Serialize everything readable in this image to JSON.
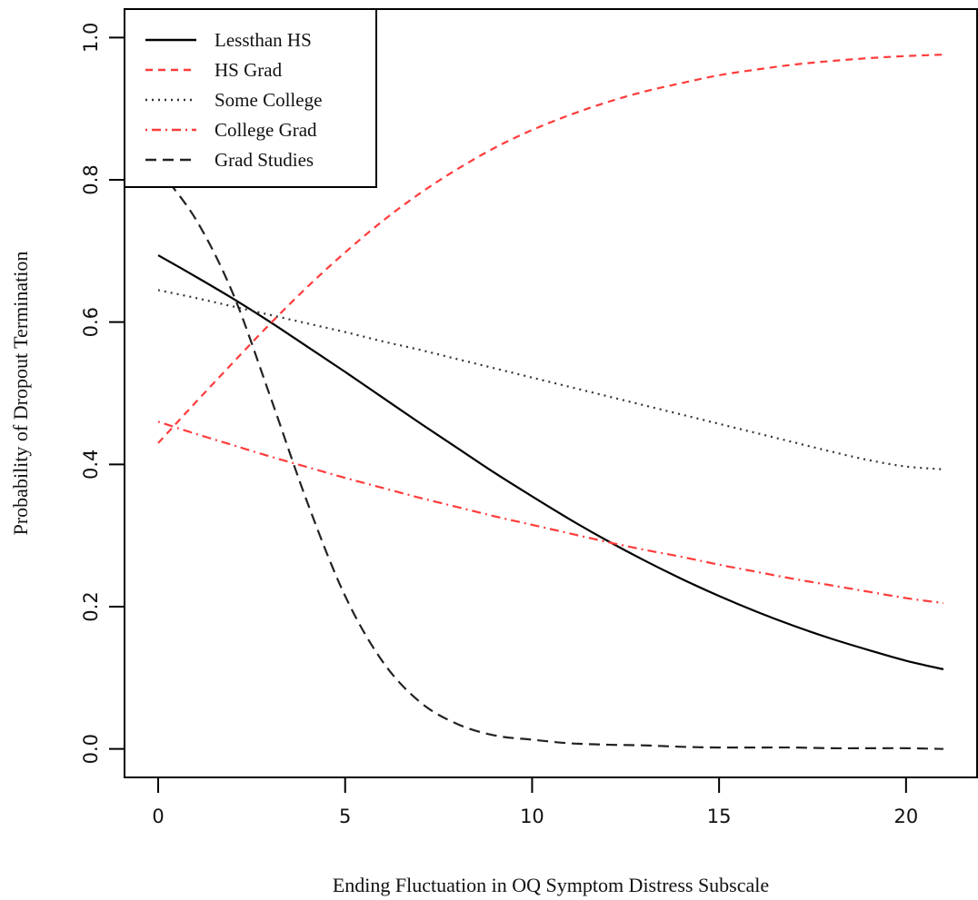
{
  "chart_data": {
    "type": "line",
    "title": "",
    "xlabel": "Ending Fluctuation in OQ Symptom Distress Subscale",
    "ylabel": "Probability of Dropout Termination",
    "xlim": [
      -0.9,
      21.9
    ],
    "ylim": [
      -0.04,
      1.04
    ],
    "x_ticks": [
      0,
      5,
      10,
      15,
      20
    ],
    "x_tick_labels": [
      "0",
      "5",
      "10",
      "15",
      "20"
    ],
    "y_ticks": [
      0.0,
      0.2,
      0.4,
      0.6,
      0.8,
      1.0
    ],
    "y_tick_labels": [
      "0.0",
      "0.2",
      "0.4",
      "0.6",
      "0.8",
      "1.0"
    ],
    "grid": false,
    "legend_position": "top-left",
    "x": [
      0,
      1,
      2,
      3,
      4,
      5,
      6,
      7,
      8,
      9,
      10,
      11,
      12,
      13,
      14,
      15,
      16,
      17,
      18,
      19,
      20,
      21
    ],
    "series": [
      {
        "name": "Lessthan HS",
        "color": "#000000",
        "dash": "solid",
        "values": [
          0.694,
          0.664,
          0.633,
          0.6,
          0.565,
          0.53,
          0.494,
          0.458,
          0.423,
          0.388,
          0.355,
          0.323,
          0.293,
          0.265,
          0.239,
          0.215,
          0.193,
          0.173,
          0.155,
          0.139,
          0.124,
          0.112
        ]
      },
      {
        "name": "HS Grad",
        "color": "#ff3b3b",
        "dash": "dashed",
        "values": [
          0.43,
          0.487,
          0.543,
          0.598,
          0.65,
          0.698,
          0.742,
          0.781,
          0.815,
          0.845,
          0.87,
          0.891,
          0.909,
          0.924,
          0.936,
          0.947,
          0.955,
          0.962,
          0.967,
          0.971,
          0.974,
          0.976
        ]
      },
      {
        "name": "Some College",
        "color": "#333333",
        "dash": "dotted",
        "values": [
          0.645,
          0.634,
          0.622,
          0.61,
          0.598,
          0.586,
          0.573,
          0.561,
          0.548,
          0.535,
          0.522,
          0.509,
          0.496,
          0.483,
          0.47,
          0.457,
          0.444,
          0.431,
          0.418,
          0.406,
          0.397,
          0.393
        ]
      },
      {
        "name": "College Grad",
        "color": "#ff3b3b",
        "dash": "dotdash",
        "values": [
          0.46,
          0.443,
          0.427,
          0.411,
          0.396,
          0.381,
          0.367,
          0.353,
          0.34,
          0.327,
          0.315,
          0.303,
          0.291,
          0.28,
          0.27,
          0.259,
          0.249,
          0.239,
          0.23,
          0.221,
          0.212,
          0.205
        ]
      },
      {
        "name": "Grad Studies",
        "color": "#222222",
        "dash": "longdash",
        "values": [
          0.815,
          0.745,
          0.64,
          0.495,
          0.345,
          0.215,
          0.123,
          0.066,
          0.035,
          0.019,
          0.013,
          0.008,
          0.006,
          0.005,
          0.003,
          0.002,
          0.002,
          0.002,
          0.001,
          0.001,
          0.001,
          0.0
        ]
      }
    ]
  }
}
